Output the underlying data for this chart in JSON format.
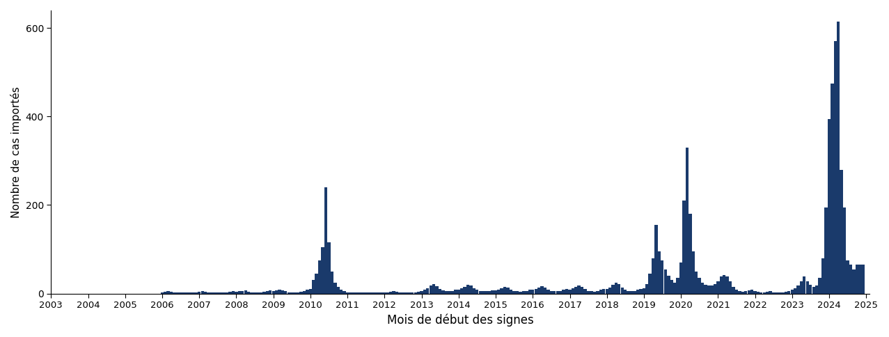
{
  "xlabel": "Mois de début des signes",
  "ylabel": "Nombre de cas importés",
  "bar_color": "#1a3a6b",
  "background_color": "#ffffff",
  "ylim": [
    0,
    640
  ],
  "yticks": [
    0,
    200,
    400,
    600
  ],
  "xtick_years": [
    2003,
    2004,
    2005,
    2006,
    2007,
    2008,
    2009,
    2010,
    2011,
    2012,
    2013,
    2014,
    2015,
    2016,
    2017,
    2018,
    2019,
    2020,
    2021,
    2022,
    2023,
    2024,
    2025
  ],
  "monthly_data": {
    "2003-01": 0,
    "2003-02": 0,
    "2003-03": 0,
    "2003-04": 0,
    "2003-05": 0,
    "2003-06": 0,
    "2003-07": 0,
    "2003-08": 0,
    "2003-09": 0,
    "2003-10": 0,
    "2003-11": 0,
    "2003-12": 0,
    "2004-01": 0,
    "2004-02": 0,
    "2004-03": 0,
    "2004-04": 0,
    "2004-05": 0,
    "2004-06": 0,
    "2004-07": 0,
    "2004-08": 0,
    "2004-09": 0,
    "2004-10": 0,
    "2004-11": 0,
    "2004-12": 0,
    "2005-01": 0,
    "2005-02": 0,
    "2005-03": 0,
    "2005-04": 0,
    "2005-05": 0,
    "2005-06": 0,
    "2005-07": 0,
    "2005-08": 0,
    "2005-09": 0,
    "2005-10": 0,
    "2005-11": 0,
    "2005-12": 0,
    "2006-01": 3,
    "2006-02": 4,
    "2006-03": 5,
    "2006-04": 4,
    "2006-05": 3,
    "2006-06": 2,
    "2006-07": 2,
    "2006-08": 2,
    "2006-09": 2,
    "2006-10": 3,
    "2006-11": 3,
    "2006-12": 3,
    "2007-01": 4,
    "2007-02": 5,
    "2007-03": 4,
    "2007-04": 3,
    "2007-05": 3,
    "2007-06": 2,
    "2007-07": 2,
    "2007-08": 2,
    "2007-09": 2,
    "2007-10": 3,
    "2007-11": 4,
    "2007-12": 5,
    "2008-01": 4,
    "2008-02": 5,
    "2008-03": 6,
    "2008-04": 7,
    "2008-05": 4,
    "2008-06": 3,
    "2008-07": 3,
    "2008-08": 2,
    "2008-09": 2,
    "2008-10": 4,
    "2008-11": 5,
    "2008-12": 7,
    "2009-01": 6,
    "2009-02": 7,
    "2009-03": 8,
    "2009-04": 7,
    "2009-05": 5,
    "2009-06": 3,
    "2009-07": 3,
    "2009-08": 2,
    "2009-09": 3,
    "2009-10": 4,
    "2009-11": 6,
    "2009-12": 8,
    "2010-01": 10,
    "2010-02": 30,
    "2010-03": 45,
    "2010-04": 75,
    "2010-05": 105,
    "2010-06": 240,
    "2010-07": 115,
    "2010-08": 50,
    "2010-09": 25,
    "2010-10": 15,
    "2010-11": 8,
    "2010-12": 5,
    "2011-01": 3,
    "2011-02": 3,
    "2011-03": 3,
    "2011-04": 3,
    "2011-05": 3,
    "2011-06": 2,
    "2011-07": 2,
    "2011-08": 2,
    "2011-09": 2,
    "2011-10": 2,
    "2011-11": 2,
    "2011-12": 2,
    "2012-01": 2,
    "2012-02": 3,
    "2012-03": 4,
    "2012-04": 5,
    "2012-05": 4,
    "2012-06": 3,
    "2012-07": 3,
    "2012-08": 2,
    "2012-09": 2,
    "2012-10": 3,
    "2012-11": 3,
    "2012-12": 4,
    "2013-01": 5,
    "2013-02": 8,
    "2013-03": 12,
    "2013-04": 18,
    "2013-05": 22,
    "2013-06": 16,
    "2013-07": 10,
    "2013-08": 7,
    "2013-09": 6,
    "2013-10": 5,
    "2013-11": 6,
    "2013-12": 8,
    "2014-01": 8,
    "2014-02": 12,
    "2014-03": 15,
    "2014-04": 20,
    "2014-05": 18,
    "2014-06": 12,
    "2014-07": 8,
    "2014-08": 6,
    "2014-09": 5,
    "2014-10": 5,
    "2014-11": 6,
    "2014-12": 7,
    "2015-01": 7,
    "2015-02": 9,
    "2015-03": 12,
    "2015-04": 15,
    "2015-05": 13,
    "2015-06": 9,
    "2015-07": 6,
    "2015-08": 5,
    "2015-09": 4,
    "2015-10": 5,
    "2015-11": 6,
    "2015-12": 8,
    "2016-01": 8,
    "2016-02": 10,
    "2016-03": 14,
    "2016-04": 17,
    "2016-05": 14,
    "2016-06": 9,
    "2016-07": 6,
    "2016-08": 5,
    "2016-09": 5,
    "2016-10": 6,
    "2016-11": 8,
    "2016-12": 10,
    "2017-01": 9,
    "2017-02": 12,
    "2017-03": 15,
    "2017-04": 18,
    "2017-05": 15,
    "2017-06": 10,
    "2017-07": 6,
    "2017-08": 5,
    "2017-09": 4,
    "2017-10": 6,
    "2017-11": 8,
    "2017-12": 10,
    "2018-01": 10,
    "2018-02": 14,
    "2018-03": 20,
    "2018-04": 25,
    "2018-05": 22,
    "2018-06": 14,
    "2018-07": 9,
    "2018-08": 6,
    "2018-09": 5,
    "2018-10": 6,
    "2018-11": 8,
    "2018-12": 10,
    "2019-01": 12,
    "2019-02": 22,
    "2019-03": 45,
    "2019-04": 80,
    "2019-05": 155,
    "2019-06": 95,
    "2019-07": 75,
    "2019-08": 55,
    "2019-09": 40,
    "2019-10": 30,
    "2019-11": 25,
    "2019-12": 35,
    "2020-01": 70,
    "2020-02": 210,
    "2020-03": 330,
    "2020-04": 180,
    "2020-05": 95,
    "2020-06": 50,
    "2020-07": 35,
    "2020-08": 25,
    "2020-09": 20,
    "2020-10": 18,
    "2020-11": 18,
    "2020-12": 22,
    "2021-01": 28,
    "2021-02": 38,
    "2021-03": 42,
    "2021-04": 38,
    "2021-05": 28,
    "2021-06": 15,
    "2021-07": 8,
    "2021-08": 5,
    "2021-09": 4,
    "2021-10": 5,
    "2021-11": 7,
    "2021-12": 8,
    "2022-01": 5,
    "2022-02": 4,
    "2022-03": 3,
    "2022-04": 3,
    "2022-05": 4,
    "2022-06": 5,
    "2022-07": 3,
    "2022-08": 3,
    "2022-09": 2,
    "2022-10": 3,
    "2022-11": 4,
    "2022-12": 5,
    "2023-01": 8,
    "2023-02": 12,
    "2023-03": 18,
    "2023-04": 28,
    "2023-05": 38,
    "2023-06": 28,
    "2023-07": 20,
    "2023-08": 15,
    "2023-09": 18,
    "2023-10": 35,
    "2023-11": 80,
    "2023-12": 195,
    "2024-01": 395,
    "2024-02": 475,
    "2024-03": 570,
    "2024-04": 615,
    "2024-05": 280,
    "2024-06": 195,
    "2024-07": 75,
    "2024-08": 65,
    "2024-09": 55,
    "2024-10": 65,
    "2024-11": 65,
    "2024-12": 65
  }
}
